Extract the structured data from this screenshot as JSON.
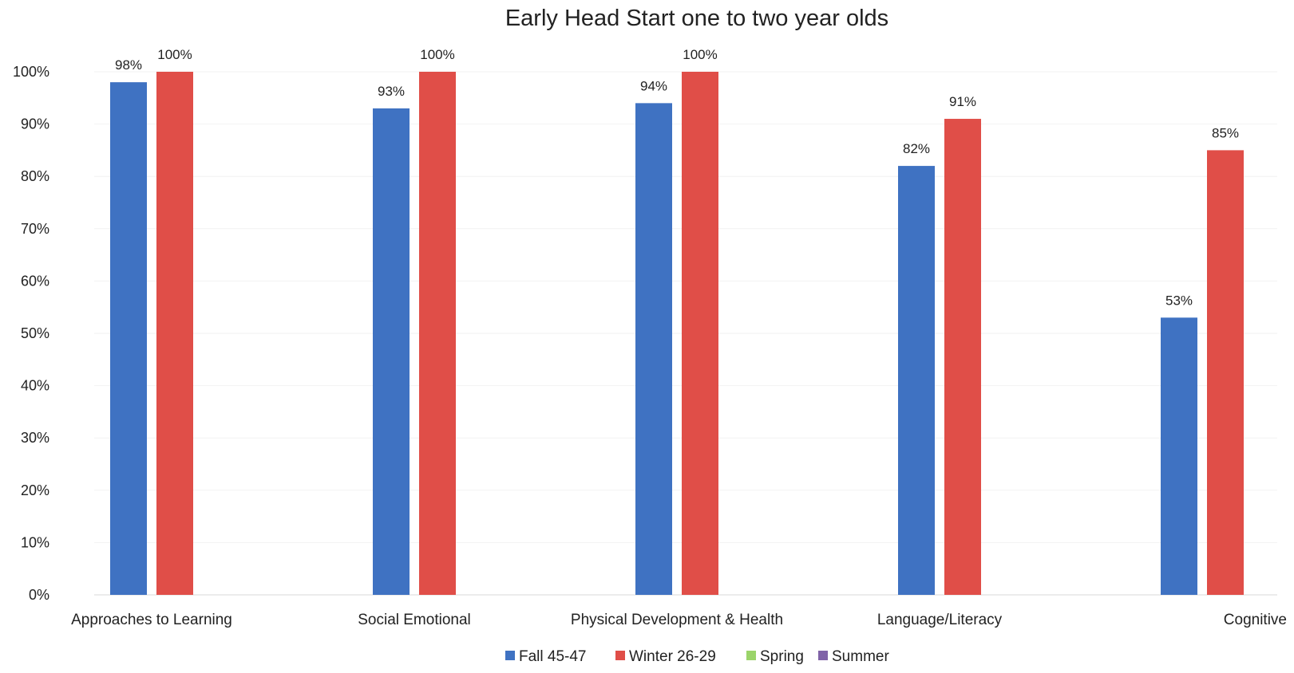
{
  "chart_data": {
    "type": "bar",
    "title": "Early Head Start  one to two year olds",
    "xlabel": "",
    "ylabel": "",
    "ylim": [
      0,
      100
    ],
    "yticks": [
      0,
      10,
      20,
      30,
      40,
      50,
      60,
      70,
      80,
      90,
      100
    ],
    "ytick_format": "{v}%",
    "grid": true,
    "legend_position": "bottom",
    "categories": [
      "Approaches to Learning",
      "Social Emotional",
      "Physical Development & Health",
      "Language/Literacy",
      "Cognitive"
    ],
    "series": [
      {
        "name": "Fall 45-47",
        "color": "#3F72C2",
        "values": [
          98,
          93,
          94,
          82,
          53
        ],
        "labels": [
          "98%",
          "93%",
          "94%",
          "82%",
          "53%"
        ]
      },
      {
        "name": "Winter  26-29",
        "color": "#E04E48",
        "values": [
          100,
          100,
          100,
          91,
          85
        ],
        "labels": [
          "100%",
          "100%",
          "100%",
          "91%",
          "85%"
        ]
      },
      {
        "name": "Spring",
        "color": "#9BD46A",
        "values": [
          null,
          null,
          null,
          null,
          null
        ],
        "labels": []
      },
      {
        "name": "Summer",
        "color": "#8063A8",
        "values": [
          null,
          null,
          null,
          null,
          null
        ],
        "labels": []
      }
    ]
  }
}
